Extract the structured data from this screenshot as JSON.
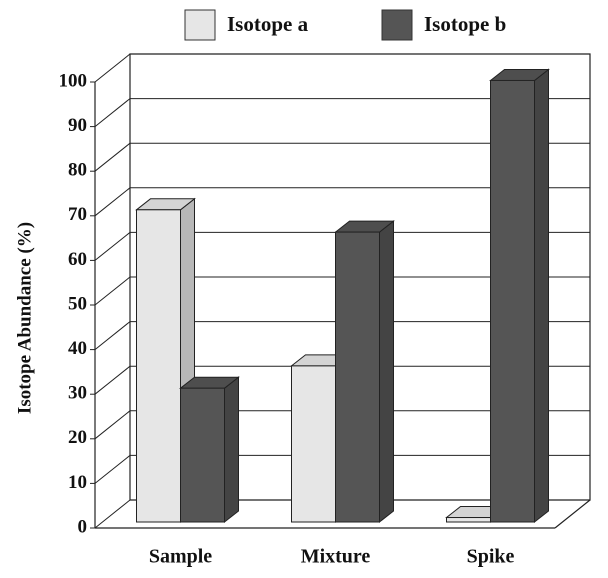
{
  "chart_data": {
    "type": "bar3d",
    "y_label": "Isotope Abundance (%)",
    "categories": [
      "Sample",
      "Mixture",
      "Spike"
    ],
    "series": [
      {
        "name": "Isotope a",
        "color": "#e6e6e6",
        "values": [
          70,
          35,
          1
        ]
      },
      {
        "name": "Isotope b",
        "color": "#555555",
        "values": [
          30,
          65,
          99
        ]
      }
    ],
    "ylim": [
      0,
      100
    ],
    "yticks": [
      0,
      10,
      20,
      30,
      40,
      50,
      60,
      70,
      80,
      90,
      100
    ],
    "grid": true,
    "legend": "top"
  }
}
